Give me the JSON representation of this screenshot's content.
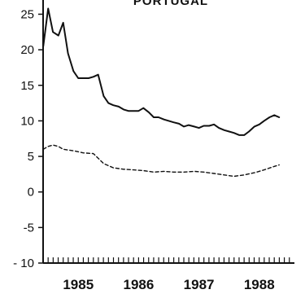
{
  "chart_data": {
    "type": "line",
    "title": "PORTUGAL",
    "xlabel": "",
    "ylabel": "",
    "xlim": [
      1984.417,
      1988.583
    ],
    "ylim": [
      -10,
      27
    ],
    "yticks": [
      -10,
      -5,
      0,
      5,
      10,
      15,
      20,
      25
    ],
    "ytick_labels": [
      "- 10",
      "-5",
      "0",
      "5",
      "10",
      "15",
      "20",
      "25"
    ],
    "year_labels": [
      {
        "x": 1985.0,
        "label": "1985"
      },
      {
        "x": 1986.0,
        "label": "1986"
      },
      {
        "x": 1987.0,
        "label": "1987"
      },
      {
        "x": 1988.0,
        "label": "1988"
      }
    ],
    "minor_ticks": {
      "start": 1984.417,
      "end": 1988.5,
      "step": 0.0833
    },
    "grid": false,
    "series": [
      {
        "style": "solid",
        "points": [
          [
            1984.42,
            20.5
          ],
          [
            1984.5,
            25.8
          ],
          [
            1984.58,
            22.5
          ],
          [
            1984.67,
            22.0
          ],
          [
            1984.75,
            23.8
          ],
          [
            1984.83,
            19.5
          ],
          [
            1984.92,
            17.0
          ],
          [
            1985.0,
            16.0
          ],
          [
            1985.08,
            16.0
          ],
          [
            1985.17,
            16.0
          ],
          [
            1985.25,
            16.2
          ],
          [
            1985.33,
            16.5
          ],
          [
            1985.42,
            13.5
          ],
          [
            1985.5,
            12.5
          ],
          [
            1985.58,
            12.2
          ],
          [
            1985.67,
            12.0
          ],
          [
            1985.75,
            11.6
          ],
          [
            1985.83,
            11.4
          ],
          [
            1985.92,
            11.4
          ],
          [
            1986.0,
            11.4
          ],
          [
            1986.08,
            11.8
          ],
          [
            1986.17,
            11.2
          ],
          [
            1986.25,
            10.5
          ],
          [
            1986.33,
            10.5
          ],
          [
            1986.42,
            10.2
          ],
          [
            1986.5,
            10.0
          ],
          [
            1986.58,
            9.8
          ],
          [
            1986.67,
            9.6
          ],
          [
            1986.75,
            9.2
          ],
          [
            1986.83,
            9.4
          ],
          [
            1986.92,
            9.2
          ],
          [
            1987.0,
            9.0
          ],
          [
            1987.08,
            9.3
          ],
          [
            1987.17,
            9.3
          ],
          [
            1987.25,
            9.5
          ],
          [
            1987.33,
            9.0
          ],
          [
            1987.42,
            8.7
          ],
          [
            1987.5,
            8.5
          ],
          [
            1987.58,
            8.3
          ],
          [
            1987.67,
            8.0
          ],
          [
            1987.75,
            8.0
          ],
          [
            1987.83,
            8.5
          ],
          [
            1987.92,
            9.2
          ],
          [
            1988.0,
            9.5
          ],
          [
            1988.08,
            10.0
          ],
          [
            1988.17,
            10.5
          ],
          [
            1988.25,
            10.8
          ],
          [
            1988.33,
            10.5
          ]
        ]
      },
      {
        "style": "dashed",
        "points": [
          [
            1984.42,
            6.0
          ],
          [
            1984.5,
            6.4
          ],
          [
            1984.58,
            6.6
          ],
          [
            1984.67,
            6.4
          ],
          [
            1984.75,
            6.0
          ],
          [
            1984.92,
            5.8
          ],
          [
            1985.08,
            5.5
          ],
          [
            1985.25,
            5.4
          ],
          [
            1985.42,
            4.0
          ],
          [
            1985.58,
            3.4
          ],
          [
            1985.75,
            3.2
          ],
          [
            1985.92,
            3.1
          ],
          [
            1986.08,
            3.0
          ],
          [
            1986.25,
            2.8
          ],
          [
            1986.42,
            2.9
          ],
          [
            1986.58,
            2.8
          ],
          [
            1986.75,
            2.8
          ],
          [
            1986.92,
            2.9
          ],
          [
            1987.08,
            2.8
          ],
          [
            1987.25,
            2.6
          ],
          [
            1987.42,
            2.4
          ],
          [
            1987.58,
            2.2
          ],
          [
            1987.75,
            2.4
          ],
          [
            1987.92,
            2.7
          ],
          [
            1988.08,
            3.1
          ],
          [
            1988.25,
            3.6
          ],
          [
            1988.33,
            3.8
          ]
        ]
      }
    ]
  }
}
